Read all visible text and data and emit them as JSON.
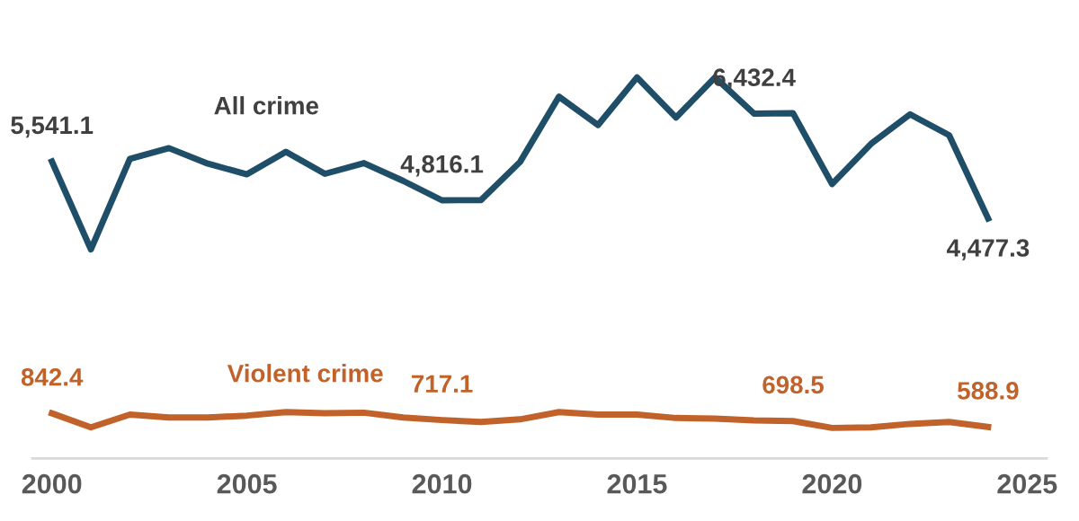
{
  "chart_data": {
    "type": "line",
    "x": [
      2000,
      2001,
      2002,
      2003,
      2004,
      2005,
      2006,
      2007,
      2008,
      2009,
      2010,
      2011,
      2012,
      2013,
      2014,
      2015,
      2016,
      2017,
      2018,
      2019,
      2020,
      2021,
      2022,
      2023,
      2024
    ],
    "series": [
      {
        "name": "All crime",
        "color": "#1f4e69",
        "values": [
          5541.1,
          3900,
          5590,
          5790,
          5500,
          5300,
          5720,
          5310,
          5510,
          5180,
          4816.1,
          4820,
          5530,
          6750,
          6220,
          7110,
          6360,
          7110,
          6432.4,
          6440,
          5120,
          5870,
          6420,
          6030,
          4477.3
        ],
        "value_labels": [
          "5,541.1",
          null,
          null,
          null,
          null,
          null,
          null,
          null,
          null,
          null,
          "4,816.1",
          null,
          null,
          null,
          null,
          null,
          null,
          null,
          "6,432.4",
          null,
          null,
          null,
          null,
          null,
          "4,477.3"
        ]
      },
      {
        "name": "Violent crime",
        "color": "#c0622a",
        "values": [
          842.4,
          580,
          820,
          765,
          765,
          800,
          865,
          845,
          855,
          765,
          717.1,
          680,
          730,
          865,
          820,
          820,
          755,
          745,
          710,
          698.5,
          570,
          580,
          645,
          680,
          588.9
        ],
        "value_labels": [
          "842.4",
          null,
          null,
          null,
          null,
          null,
          null,
          null,
          null,
          null,
          "717.1",
          null,
          null,
          null,
          null,
          null,
          null,
          null,
          null,
          "698.5",
          null,
          null,
          null,
          null,
          "588.9"
        ]
      }
    ],
    "xlim": [
      1999.5,
      2025.5
    ],
    "xticks": [
      2000,
      2005,
      2010,
      2015,
      2020,
      2025
    ],
    "tick_labels": "x",
    "grid": false,
    "legend": false,
    "marker": "none",
    "line_style": "solid"
  }
}
